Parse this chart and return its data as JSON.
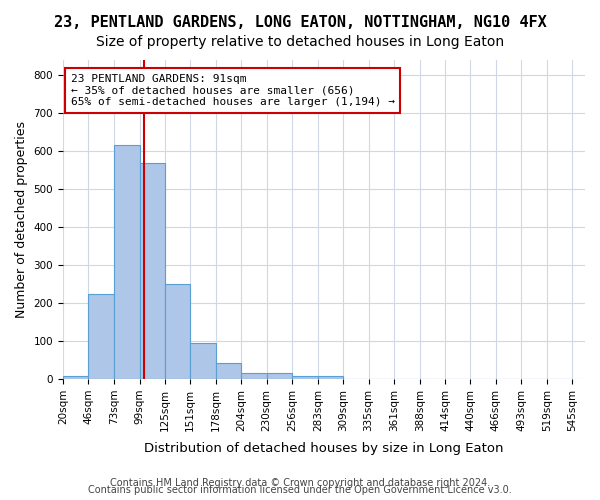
{
  "title": "23, PENTLAND GARDENS, LONG EATON, NOTTINGHAM, NG10 4FX",
  "subtitle": "Size of property relative to detached houses in Long Eaton",
  "xlabel": "Distribution of detached houses by size in Long Eaton",
  "ylabel": "Number of detached properties",
  "bin_edges": [
    7,
    33,
    60,
    86,
    112,
    138,
    165,
    191,
    217,
    243,
    270,
    296,
    322,
    348,
    375,
    401,
    427,
    453,
    479,
    506,
    532
  ],
  "bar_heights": [
    8,
    225,
    615,
    570,
    250,
    95,
    42,
    17,
    17,
    8,
    8,
    0,
    0,
    0,
    0,
    0,
    0,
    0,
    0,
    0
  ],
  "tick_labels": [
    "20sqm",
    "46sqm",
    "73sqm",
    "99sqm",
    "125sqm",
    "151sqm",
    "178sqm",
    "204sqm",
    "230sqm",
    "256sqm",
    "283sqm",
    "309sqm",
    "335sqm",
    "361sqm",
    "388sqm",
    "414sqm",
    "440sqm",
    "466sqm",
    "493sqm",
    "519sqm",
    "545sqm"
  ],
  "bar_color": "#aec6e8",
  "bar_edge_color": "#5a9fd4",
  "property_line_x": 91,
  "annotation_text": "23 PENTLAND GARDENS: 91sqm\n← 35% of detached houses are smaller (656)\n65% of semi-detached houses are larger (1,194) →",
  "annotation_box_color": "#ffffff",
  "annotation_box_edge": "#cc0000",
  "red_line_color": "#cc0000",
  "ylim": [
    0,
    840
  ],
  "yticks": [
    0,
    100,
    200,
    300,
    400,
    500,
    600,
    700,
    800
  ],
  "xlim_min": 7,
  "xlim_max": 545,
  "background_color": "#ffffff",
  "grid_color": "#d0d8e8",
  "footer_line1": "Contains HM Land Registry data © Crown copyright and database right 2024.",
  "footer_line2": "Contains public sector information licensed under the Open Government Licence v3.0.",
  "title_fontsize": 11,
  "subtitle_fontsize": 10,
  "xlabel_fontsize": 9.5,
  "ylabel_fontsize": 9,
  "tick_fontsize": 7.5,
  "footer_fontsize": 7,
  "annotation_fontsize": 8
}
